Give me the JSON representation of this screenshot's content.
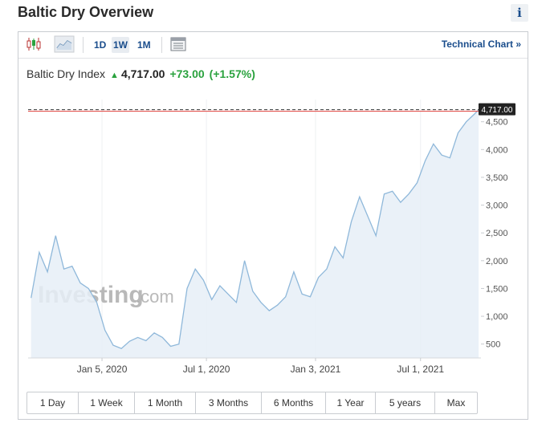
{
  "header": {
    "title": "Baltic Dry Overview",
    "info_label": "i"
  },
  "toolbar": {
    "ranges": [
      "1D",
      "1W",
      "1M"
    ],
    "active_range": "1W",
    "technical_link": "Technical Chart »",
    "icons": [
      "candlestick-icon",
      "area-chart-icon",
      "table-view-icon"
    ]
  },
  "quote": {
    "name": "Baltic Dry Index",
    "price": "4,717.00",
    "change": "+73.00",
    "change_pct": "(+1.57%)",
    "direction_icon": "up-arrow-icon"
  },
  "watermark": {
    "brand": "Investing",
    "suffix": ".com"
  },
  "range_tabs": [
    "1 Day",
    "1 Week",
    "1 Month",
    "3 Months",
    "6 Months",
    "1 Year",
    "5 years",
    "Max"
  ],
  "colors": {
    "accent": "#1a4d8c",
    "positive": "#2aa23e",
    "line": "#8fb8da",
    "fill": "#e6eff7",
    "last_price_line": "#e0413c"
  },
  "chart_data": {
    "type": "area",
    "series": [
      {
        "x": [
          "2019-09-06",
          "2019-09-20",
          "2019-10-04",
          "2019-10-18",
          "2019-11-01",
          "2019-11-15",
          "2019-11-29",
          "2019-12-13",
          "2019-12-27",
          "2020-01-10",
          "2020-01-24",
          "2020-02-07",
          "2020-02-21",
          "2020-03-06",
          "2020-03-20",
          "2020-04-03",
          "2020-04-17",
          "2020-05-01",
          "2020-05-15",
          "2020-05-29",
          "2020-06-12",
          "2020-06-26",
          "2020-07-10",
          "2020-07-24",
          "2020-08-07",
          "2020-08-21",
          "2020-09-04",
          "2020-09-18",
          "2020-10-02",
          "2020-10-16",
          "2020-10-30",
          "2020-11-13",
          "2020-11-27",
          "2020-12-11",
          "2020-12-25",
          "2021-01-08",
          "2021-01-22",
          "2021-02-05",
          "2021-02-19",
          "2021-03-05",
          "2021-03-19",
          "2021-04-02",
          "2021-04-16",
          "2021-04-30",
          "2021-05-14",
          "2021-05-28",
          "2021-06-11",
          "2021-06-25",
          "2021-07-09",
          "2021-07-23",
          "2021-08-06",
          "2021-08-20",
          "2021-09-03",
          "2021-09-17",
          "2021-10-01",
          "2021-10-08"
        ],
        "y": [
          1330,
          2150,
          1800,
          2450,
          1850,
          1900,
          1600,
          1500,
          1250,
          750,
          480,
          420,
          550,
          620,
          560,
          700,
          620,
          460,
          500,
          1500,
          1850,
          1650,
          1300,
          1550,
          1400,
          1250,
          2000,
          1450,
          1250,
          1100,
          1200,
          1350,
          1800,
          1400,
          1350,
          1700,
          1850,
          2250,
          2050,
          2700,
          3150,
          2800,
          2450,
          3200,
          3250,
          3050,
          3200,
          3400,
          3800,
          4100,
          3900,
          3850,
          4300,
          4500,
          4640,
          4717
        ]
      }
    ],
    "x_ticks": [
      {
        "label": "Jan 5, 2020",
        "x": "2020-01-05"
      },
      {
        "label": "Jul 1, 2020",
        "x": "2020-07-01"
      },
      {
        "label": "Jan 3, 2021",
        "x": "2021-01-03"
      },
      {
        "label": "Jul 1, 2021",
        "x": "2021-07-01"
      }
    ],
    "y_ticks": [
      500,
      1000,
      1500,
      2000,
      2500,
      3000,
      3500,
      4000,
      4500
    ],
    "y_tick_labels": [
      "500",
      "1,000",
      "1,500",
      "2,000",
      "2,500",
      "3,000",
      "3,500",
      "4,000",
      "4,500"
    ],
    "ylim": [
      250,
      4900
    ],
    "xlim": [
      "2019-09-01",
      "2021-10-12"
    ],
    "last_value": 4717,
    "last_value_label": "4,717.00",
    "grid": true,
    "title": "",
    "xlabel": "",
    "ylabel": ""
  }
}
